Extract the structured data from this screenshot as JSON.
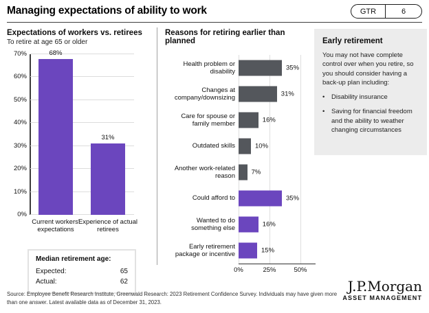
{
  "header": {
    "title": "Managing expectations of ability to work",
    "tag": {
      "label": "GTR",
      "page": "6"
    }
  },
  "chart_data": [
    {
      "type": "bar",
      "title": "Expectations of workers vs. retirees",
      "subtitle": "To retire at age 65 or older",
      "categories": [
        "Current workers' expectations",
        "Experience of actual retirees"
      ],
      "values": [
        68,
        31
      ],
      "value_labels": [
        "68%",
        "31%"
      ],
      "bar_color": "#6b46be",
      "ylim": [
        0,
        70
      ],
      "yticks": [
        0,
        10,
        20,
        30,
        40,
        50,
        60,
        70
      ],
      "grid": true,
      "legend": "none"
    },
    {
      "type": "bar-horizontal",
      "title": "Reasons for retiring earlier than planned",
      "categories": [
        "Health problem or disability",
        "Changes at company/downsizing",
        "Care for spouse or family member",
        "Outdated skills",
        "Another work-related reason",
        "Could afford to",
        "Wanted to do something else",
        "Early retirement package or incentive"
      ],
      "values": [
        35,
        31,
        16,
        10,
        7,
        35,
        16,
        15
      ],
      "value_labels": [
        "35%",
        "31%",
        "16%",
        "10%",
        "7%",
        "35%",
        "16%",
        "15%"
      ],
      "bar_colors": [
        "#54575c",
        "#54575c",
        "#54575c",
        "#54575c",
        "#54575c",
        "#6b46be",
        "#6b46be",
        "#6b46be"
      ],
      "xlim": [
        0,
        50
      ],
      "xticks": [
        0,
        25,
        50
      ],
      "grid": true,
      "legend": "none"
    }
  ],
  "median_box": {
    "title": "Median retirement age:",
    "rows": [
      {
        "label": "Expected:",
        "value": "65"
      },
      {
        "label": "Actual:",
        "value": "62"
      }
    ]
  },
  "side_panel": {
    "title": "Early retirement",
    "body": "You may not have complete control over when you retire, so you should consider having a back-up plan including:",
    "bullets": [
      "Disability insurance",
      "Saving for financial freedom and the ability to weather changing circumstances"
    ]
  },
  "footer": {
    "source": "Source: Employee Benefit Research Institute, Greenwald Research: 2023 Retirement Confidence Survey. Individuals may have given more than one answer. Latest available data as of December 31, 2023.",
    "brand": "J.P.Morgan",
    "brand_sub": "ASSET MANAGEMENT"
  },
  "colors": {
    "purple": "#6b46be",
    "dark_gray": "#54575c",
    "gridline": "#dcdcdc",
    "panel_bg": "#ececec"
  }
}
